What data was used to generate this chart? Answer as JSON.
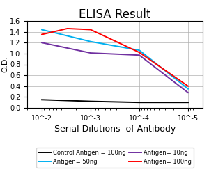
{
  "title": "ELISA Result",
  "ylabel": "O.D.",
  "xlabel": "Serial Dilutions  of Antibody",
  "xlim_left": 0.02,
  "xlim_right": 5e-06,
  "ylim": [
    0,
    1.6
  ],
  "yticks": [
    0,
    0.2,
    0.4,
    0.6,
    0.8,
    1.0,
    1.2,
    1.4,
    1.6
  ],
  "xticks": [
    0.01,
    0.001,
    0.0001,
    1e-05
  ],
  "xticklabels": [
    "10^-2",
    "10^-3",
    "10^-4",
    "10^-5"
  ],
  "lines": [
    {
      "label": "Control Antigen = 100ng",
      "color": "#000000",
      "x": [
        0.01,
        0.001,
        0.0001,
        1e-05
      ],
      "y": [
        0.15,
        0.12,
        0.1,
        0.1
      ]
    },
    {
      "label": "Antigen= 10ng",
      "color": "#7030A0",
      "x": [
        0.01,
        0.001,
        0.0001,
        1e-05
      ],
      "y": [
        1.2,
        1.01,
        0.97,
        0.28
      ]
    },
    {
      "label": "Antigen= 50ng",
      "color": "#00B0F0",
      "x": [
        0.01,
        0.001,
        0.0001,
        1e-05
      ],
      "y": [
        1.44,
        1.22,
        1.06,
        0.35
      ]
    },
    {
      "label": "Antigen= 100ng",
      "color": "#FF0000",
      "x": [
        0.01,
        0.003,
        0.001,
        0.0001,
        1e-05
      ],
      "y": [
        1.35,
        1.46,
        1.44,
        1.02,
        0.4
      ]
    }
  ],
  "background_color": "#ffffff",
  "grid_color": "#b0b0b0",
  "title_fontsize": 12,
  "ylabel_fontsize": 8,
  "xlabel_fontsize": 9,
  "legend_fontsize": 6,
  "tick_fontsize": 7,
  "linewidth": 1.4
}
